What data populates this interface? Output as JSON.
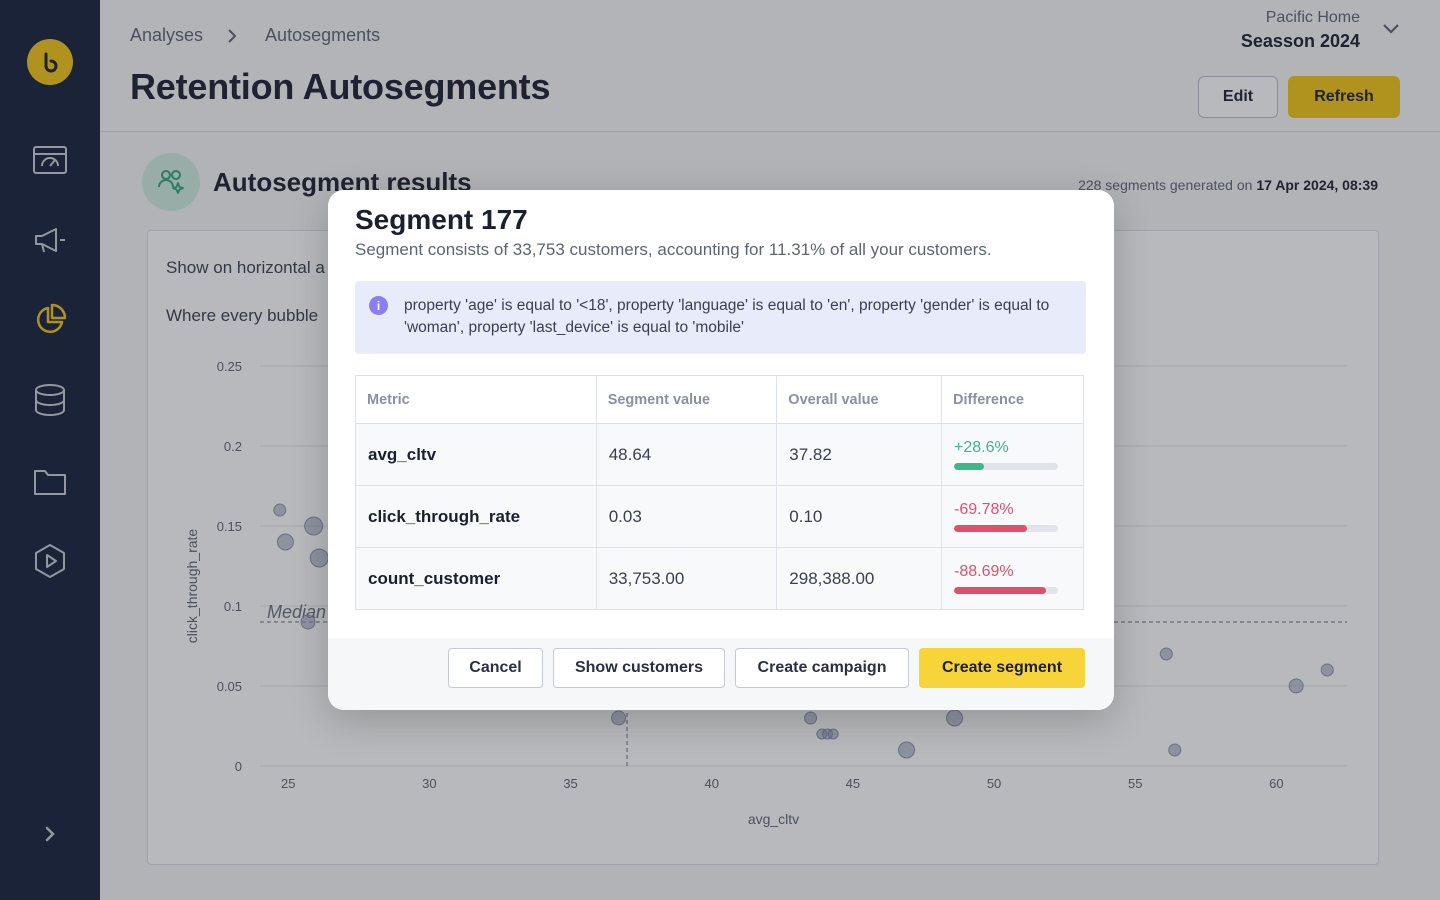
{
  "breadcrumb": {
    "root": "Analyses",
    "current": "Autosegments"
  },
  "page": {
    "title": "Retention Autosegments"
  },
  "project": {
    "org": "Pacific Home",
    "name": "Seasson 2024"
  },
  "header": {
    "edit_label": "Edit",
    "refresh_label": "Refresh"
  },
  "results": {
    "title": "Autosegment results",
    "meta_count": "228 segments generated on",
    "meta_date": "17 Apr 2024, 08:39",
    "horizontal_text": "Show on horizontal a",
    "bubble_text": "Where every bubble"
  },
  "chart_data": {
    "type": "scatter",
    "xlabel": "avg_cltv",
    "ylabel": "click_through_rate",
    "x_ticks": [
      "25",
      "30",
      "35",
      "40",
      "45",
      "50",
      "55",
      "60"
    ],
    "y_ticks": [
      "0",
      "0.05",
      "0.1",
      "0.15",
      "0.2",
      "0.25"
    ],
    "xlim": [
      24,
      62.5
    ],
    "ylim": [
      0,
      0.25
    ],
    "median_label": "Median",
    "median_y": 0.09,
    "median_x": 37,
    "points": [
      {
        "x": 24.7,
        "y": 0.16,
        "r": 6
      },
      {
        "x": 24.9,
        "y": 0.14,
        "r": 8
      },
      {
        "x": 25.9,
        "y": 0.15,
        "r": 9
      },
      {
        "x": 26.1,
        "y": 0.13,
        "r": 9
      },
      {
        "x": 25.7,
        "y": 0.09,
        "r": 7
      },
      {
        "x": 36.7,
        "y": 0.03,
        "r": 7
      },
      {
        "x": 43.5,
        "y": 0.03,
        "r": 6
      },
      {
        "x": 43.9,
        "y": 0.02,
        "r": 5
      },
      {
        "x": 44.1,
        "y": 0.02,
        "r": 5
      },
      {
        "x": 44.3,
        "y": 0.02,
        "r": 5
      },
      {
        "x": 46.9,
        "y": 0.01,
        "r": 8
      },
      {
        "x": 48.6,
        "y": 0.03,
        "r": 8
      },
      {
        "x": 56.1,
        "y": 0.07,
        "r": 6
      },
      {
        "x": 56.4,
        "y": 0.01,
        "r": 6
      },
      {
        "x": 60.7,
        "y": 0.05,
        "r": 7
      },
      {
        "x": 61.8,
        "y": 0.06,
        "r": 6
      }
    ]
  },
  "modal": {
    "title": "Segment 177",
    "subtitle": "Segment consists of 33,753 customers, accounting for 11.31% of all your customers.",
    "info": "property 'age' is equal to '<18', property 'language' is equal to 'en', property 'gender' is equal to 'woman', property 'last_device' is equal to 'mobile'",
    "columns": [
      "Metric",
      "Segment value",
      "Overall value",
      "Difference"
    ],
    "rows": [
      {
        "metric": "avg_cltv",
        "segment": "48.64",
        "overall": "37.82",
        "diff": "+28.6%",
        "diff_fraction": 0.286,
        "positive": true
      },
      {
        "metric": "click_through_rate",
        "segment": "0.03",
        "overall": "0.10",
        "diff": "-69.78%",
        "diff_fraction": 0.6978,
        "positive": false
      },
      {
        "metric": "count_customer",
        "segment": "33,753.00",
        "overall": "298,388.00",
        "diff": "-88.69%",
        "diff_fraction": 0.8869,
        "positive": false
      }
    ],
    "buttons": {
      "cancel": "Cancel",
      "show_customers": "Show customers",
      "create_campaign": "Create campaign",
      "create_segment": "Create segment"
    }
  },
  "colors": {
    "accent": "#f4c516",
    "sidebar": "#14203a",
    "positive": "#3fb58a",
    "negative": "#e0506a"
  }
}
